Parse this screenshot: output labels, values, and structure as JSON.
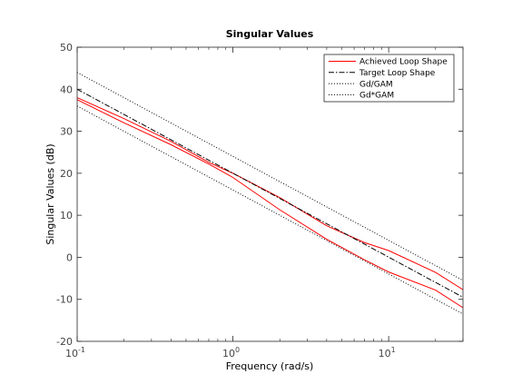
{
  "chart_data": {
    "type": "line",
    "title": "Singular Values",
    "xlabel": "Frequency (rad/s)",
    "ylabel": "Singular Values (dB)",
    "xscale": "log",
    "xlim": [
      0.1,
      30
    ],
    "ylim": [
      -20,
      50
    ],
    "grid": false,
    "legend_position": "top-right",
    "y_ticks": [
      "-20",
      "-10",
      "0",
      "10",
      "20",
      "30",
      "40",
      "50"
    ],
    "x_ticks": [
      {
        "value": 0.1,
        "base": "10",
        "exp": "-1"
      },
      {
        "value": 1,
        "base": "10",
        "exp": "0"
      },
      {
        "value": 10,
        "base": "10",
        "exp": "1"
      }
    ],
    "series": [
      {
        "name": "Achieved Loop Shape",
        "color": "#ff0000",
        "dash": "solid",
        "x": [
          0.1,
          0.2,
          0.4,
          0.7,
          1,
          2,
          4,
          7,
          10,
          20,
          30
        ],
        "y": [
          38,
          33,
          27.6,
          22.6,
          20,
          14.2,
          7.5,
          3.5,
          1.6,
          -3.6,
          -7.7
        ]
      },
      {
        "name": "",
        "color": "#ff0000",
        "dash": "solid",
        "x": [
          0.1,
          0.2,
          0.4,
          0.7,
          1,
          2,
          4,
          7,
          10,
          20,
          30
        ],
        "y": [
          37.5,
          32,
          26.8,
          22.2,
          19,
          11.3,
          4.3,
          -0.6,
          -3.5,
          -7.8,
          -12
        ]
      },
      {
        "name": "Target Loop Shape",
        "color": "#000000",
        "dash": "dashdot",
        "x": [
          0.1,
          30
        ],
        "y": [
          40,
          -9.5
        ]
      },
      {
        "name": "Gd/GAM",
        "color": "#000000",
        "dash": "dotted",
        "x": [
          0.1,
          30
        ],
        "y": [
          44,
          -5.5
        ]
      },
      {
        "name": "Gd*GAM",
        "color": "#000000",
        "dash": "dotted",
        "x": [
          0.1,
          30
        ],
        "y": [
          36,
          -13.5
        ]
      }
    ],
    "legend": [
      {
        "label": "Achieved Loop Shape",
        "color": "#ff0000",
        "dash": "solid"
      },
      {
        "label": "Target Loop Shape",
        "color": "#000000",
        "dash": "dashdot"
      },
      {
        "label": "Gd/GAM",
        "color": "#000000",
        "dash": "dotted"
      },
      {
        "label": "Gd*GAM",
        "color": "#000000",
        "dash": "dotted"
      }
    ]
  }
}
